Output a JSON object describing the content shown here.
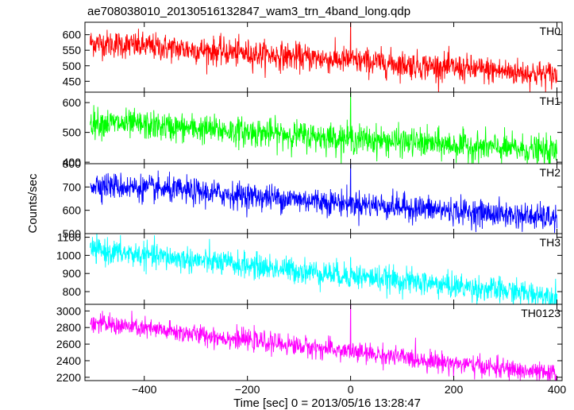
{
  "chart_data": {
    "type": "line",
    "title": "ae708038010_20130516132847_wam3_trn_4band_long.qdp",
    "xlabel": "Time [sec] 0 = 2013/05/16 13:28:47",
    "ylabel": "Counts/sec",
    "xlim": [
      -515,
      410
    ],
    "x_ticks": [
      -400,
      -200,
      0,
      200,
      400
    ],
    "x_tick_labels": [
      "−400",
      "−200",
      "0",
      "200",
      "400"
    ],
    "x_range": [
      -505,
      400
    ],
    "grid": false,
    "panels": [
      {
        "name": "TH0",
        "color": "#ff0000",
        "ylim": [
          415,
          640
        ],
        "yticks": [
          450,
          500,
          550,
          600
        ],
        "trend_start": 575,
        "trend_end": 470,
        "noise_sd": 22,
        "spike": {
          "x": 0,
          "y": 640
        },
        "points": [
          {
            "x": -500,
            "y": 575
          },
          {
            "x": -400,
            "y": 562
          },
          {
            "x": -300,
            "y": 548
          },
          {
            "x": -200,
            "y": 535
          },
          {
            "x": -100,
            "y": 522
          },
          {
            "x": 0,
            "y": 510
          },
          {
            "x": 100,
            "y": 498
          },
          {
            "x": 200,
            "y": 488
          },
          {
            "x": 300,
            "y": 478
          },
          {
            "x": 400,
            "y": 470
          }
        ]
      },
      {
        "name": "TH1",
        "color": "#00ff00",
        "ylim": [
          395,
          635
        ],
        "yticks": [
          400,
          500,
          600
        ],
        "trend_start": 535,
        "trend_end": 435,
        "noise_sd": 24,
        "spike": {
          "x": 0,
          "y": 635
        },
        "points": [
          {
            "x": -500,
            "y": 535
          },
          {
            "x": -400,
            "y": 523
          },
          {
            "x": -300,
            "y": 512
          },
          {
            "x": -200,
            "y": 500
          },
          {
            "x": -100,
            "y": 490
          },
          {
            "x": 0,
            "y": 478
          },
          {
            "x": 100,
            "y": 466
          },
          {
            "x": 200,
            "y": 455
          },
          {
            "x": 300,
            "y": 445
          },
          {
            "x": 400,
            "y": 435
          }
        ]
      },
      {
        "name": "TH2",
        "color": "#0000ff",
        "ylim": [
          500,
          800
        ],
        "yticks": [
          500,
          600,
          700,
          800
        ],
        "trend_start": 712,
        "trend_end": 565,
        "noise_sd": 28,
        "spike": {
          "x": 0,
          "y": 800
        },
        "points": [
          {
            "x": -500,
            "y": 712
          },
          {
            "x": -400,
            "y": 695
          },
          {
            "x": -300,
            "y": 678
          },
          {
            "x": -200,
            "y": 660
          },
          {
            "x": -100,
            "y": 643
          },
          {
            "x": 0,
            "y": 627
          },
          {
            "x": 100,
            "y": 610
          },
          {
            "x": 200,
            "y": 595
          },
          {
            "x": 300,
            "y": 580
          },
          {
            "x": 400,
            "y": 565
          }
        ]
      },
      {
        "name": "TH3",
        "color": "#00ffff",
        "ylim": [
          730,
          1120
        ],
        "yticks": [
          800,
          900,
          1000,
          1100
        ],
        "trend_start": 1030,
        "trend_end": 775,
        "noise_sd": 35,
        "spike": {
          "x": 0,
          "y": 990
        },
        "points": [
          {
            "x": -500,
            "y": 1030
          },
          {
            "x": -400,
            "y": 1000
          },
          {
            "x": -300,
            "y": 970
          },
          {
            "x": -200,
            "y": 940
          },
          {
            "x": -100,
            "y": 912
          },
          {
            "x": 0,
            "y": 885
          },
          {
            "x": 100,
            "y": 855
          },
          {
            "x": 200,
            "y": 828
          },
          {
            "x": 300,
            "y": 800
          },
          {
            "x": 400,
            "y": 775
          }
        ]
      },
      {
        "name": "TH0123",
        "color": "#ff00ff",
        "ylim": [
          2160,
          3080
        ],
        "yticks": [
          2200,
          2400,
          2600,
          2800,
          3000
        ],
        "trend_start": 2860,
        "trend_end": 2230,
        "noise_sd": 60,
        "spike": {
          "x": 0,
          "y": 3080
        },
        "points": [
          {
            "x": -500,
            "y": 2860
          },
          {
            "x": -400,
            "y": 2790
          },
          {
            "x": -300,
            "y": 2720
          },
          {
            "x": -200,
            "y": 2650
          },
          {
            "x": -100,
            "y": 2575
          },
          {
            "x": 0,
            "y": 2500
          },
          {
            "x": 100,
            "y": 2430
          },
          {
            "x": 200,
            "y": 2360
          },
          {
            "x": 300,
            "y": 2290
          },
          {
            "x": 400,
            "y": 2230
          }
        ]
      }
    ]
  }
}
